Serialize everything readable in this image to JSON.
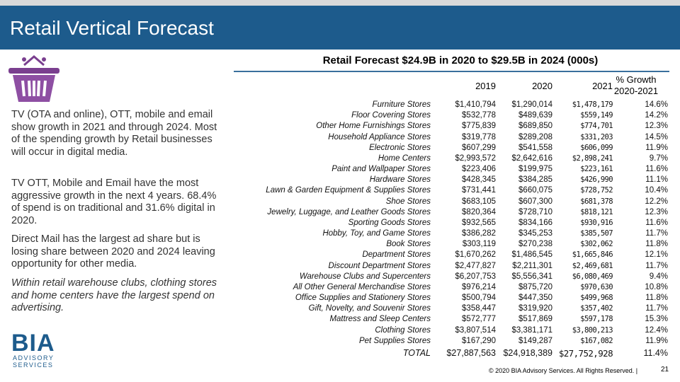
{
  "header": {
    "title": "Retail Vertical Forecast"
  },
  "subtitle": "Retail Forecast $24.9B in 2020 to $29.5B in 2024 (000s)",
  "paragraphs": [
    "TV (OTA and online), OTT, mobile and email show growth in 2021 and through 2024. Most of the spending growth by Retail businesses will occur in digital media.",
    "TV OTT, Mobile and Email have the most aggressive growth in the next 4 years. 68.4% of spend is on traditional and 31.6% digital in 2020.",
    "Direct Mail has the largest ad share but is losing share between 2020 and 2024 leaving opportunity for other media.",
    "Within retail warehouse clubs, clothing stores and home centers have the largest spend on advertising."
  ],
  "table": {
    "columns": [
      "2019",
      "2020",
      "2021",
      "% Growth 2020-2021"
    ],
    "rows": [
      [
        "Furniture Stores",
        "$1,410,794",
        "$1,290,014",
        "$1,478,179",
        "14.6%"
      ],
      [
        "Floor Covering Stores",
        "$532,778",
        "$489,639",
        "$559,149",
        "14.2%"
      ],
      [
        "Other Home Furnishings Stores",
        "$775,839",
        "$689,850",
        "$774,701",
        "12.3%"
      ],
      [
        "Household Appliance Stores",
        "$319,778",
        "$289,208",
        "$331,203",
        "14.5%"
      ],
      [
        "Electronic Stores",
        "$607,299",
        "$541,558",
        "$606,099",
        "11.9%"
      ],
      [
        "Home Centers",
        "$2,993,572",
        "$2,642,616",
        "$2,898,241",
        "9.7%"
      ],
      [
        "Paint and Wallpaper Stores",
        "$223,406",
        "$199,975",
        "$223,161",
        "11.6%"
      ],
      [
        "Hardware Stores",
        "$428,345",
        "$384,285",
        "$426,990",
        "11.1%"
      ],
      [
        "Lawn & Garden Equipment & Supplies Stores",
        "$731,441",
        "$660,075",
        "$728,752",
        "10.4%"
      ],
      [
        "Shoe Stores",
        "$683,105",
        "$607,300",
        "$681,378",
        "12.2%"
      ],
      [
        "Jewelry, Luggage, and Leather Goods Stores",
        "$820,364",
        "$728,710",
        "$818,121",
        "12.3%"
      ],
      [
        "Sporting Goods Stores",
        "$932,565",
        "$834,166",
        "$930,916",
        "11.6%"
      ],
      [
        "Hobby, Toy, and Game Stores",
        "$386,282",
        "$345,253",
        "$385,507",
        "11.7%"
      ],
      [
        "Book Stores",
        "$303,119",
        "$270,238",
        "$302,062",
        "11.8%"
      ],
      [
        "Department Stores",
        "$1,670,262",
        "$1,486,545",
        "$1,665,846",
        "12.1%"
      ],
      [
        "Discount Department Stores",
        "$2,477,827",
        "$2,211,301",
        "$2,469,681",
        "11.7%"
      ],
      [
        "Warehouse Clubs and Supercenters",
        "$6,207,753",
        "$5,556,341",
        "$6,080,469",
        "9.4%"
      ],
      [
        "All Other General Merchandise Stores",
        "$976,214",
        "$875,720",
        "$970,630",
        "10.8%"
      ],
      [
        "Office Supplies and Stationery Stores",
        "$500,794",
        "$447,350",
        "$499,968",
        "11.8%"
      ],
      [
        "Gift, Novelty, and Souvenir Stores",
        "$358,447",
        "$319,920",
        "$357,402",
        "11.7%"
      ],
      [
        "Mattress and Sleep Centers",
        "$572,777",
        "$517,869",
        "$597,178",
        "15.3%"
      ],
      [
        "Clothing Stores",
        "$3,807,514",
        "$3,381,171",
        "$3,800,213",
        "12.4%"
      ],
      [
        "Pet Supplies Stores",
        "$167,290",
        "$149,287",
        "$167,082",
        "11.9%"
      ],
      [
        "TOTAL",
        "$27,887,563",
        "$24,918,389",
        "$27,752,928",
        "11.4%"
      ]
    ]
  },
  "logo": {
    "name": "BIA",
    "tagline": "ADVISORY SERVICES"
  },
  "footer": {
    "copyright": "© 2020 BIA Advisory Services. All Rights Reserved. |",
    "page": "21"
  }
}
